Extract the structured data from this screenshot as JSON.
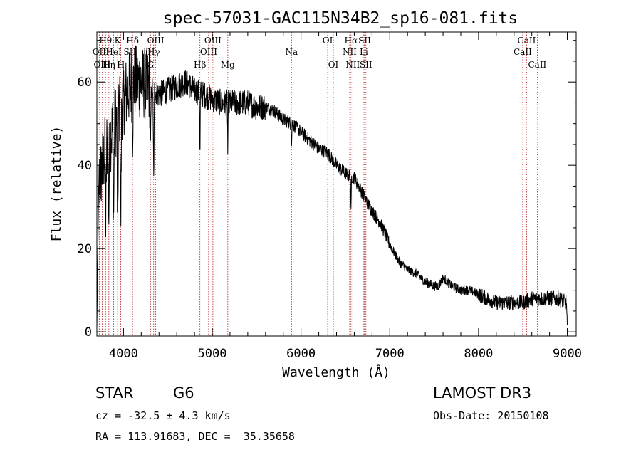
{
  "chart_data": {
    "type": "line",
    "title": "spec-57031-GAC115N34B2_sp16-081.fits",
    "xlabel": "Wavelength (Å)",
    "ylabel": "Flux (relative)",
    "xlim": [
      3700,
      9100
    ],
    "ylim": [
      -1,
      72
    ],
    "x_ticks": [
      4000,
      5000,
      6000,
      7000,
      8000,
      9000
    ],
    "y_ticks": [
      0,
      20,
      40,
      60
    ],
    "colors": {
      "spectrum": "#000000",
      "lines": "#b22222",
      "axes": "#000000"
    },
    "spectral_lines": [
      {
        "label": "Hθ",
        "wavelength": 3798,
        "row": 1
      },
      {
        "label": "OII",
        "wavelength": 3727,
        "row": 2
      },
      {
        "label": "OIII",
        "wavelength": 3760,
        "row": 3
      },
      {
        "label": "K",
        "wavelength": 3934,
        "row": 1
      },
      {
        "label": "HeI",
        "wavelength": 3889,
        "row": 2
      },
      {
        "label": "Hη",
        "wavelength": 3835,
        "row": 3
      },
      {
        "label": "H",
        "wavelength": 3969,
        "row": 3
      },
      {
        "label": "SII",
        "wavelength": 4072,
        "row": 2
      },
      {
        "label": "Hδ",
        "wavelength": 4102,
        "row": 1
      },
      {
        "label": "OIII",
        "wavelength": 4363,
        "row": 1
      },
      {
        "label": "Hγ",
        "wavelength": 4340,
        "row": 2
      },
      {
        "label": "G",
        "wavelength": 4304,
        "row": 3
      },
      {
        "label": "Hβ",
        "wavelength": 4861,
        "row": 3
      },
      {
        "label": "OIII",
        "wavelength": 4959,
        "row": 2
      },
      {
        "label": "OIII",
        "wavelength": 5007,
        "row": 1
      },
      {
        "label": "Mg",
        "wavelength": 5175,
        "row": 3
      },
      {
        "label": "Na",
        "wavelength": 5893,
        "row": 2
      },
      {
        "label": "OI",
        "wavelength": 6300,
        "row": 1
      },
      {
        "label": "OI",
        "wavelength": 6364,
        "row": 3
      },
      {
        "label": "NII",
        "wavelength": 6548,
        "row": 2
      },
      {
        "label": "Hα",
        "wavelength": 6563,
        "row": 1
      },
      {
        "label": "NII",
        "wavelength": 6583,
        "row": 3
      },
      {
        "label": "Li",
        "wavelength": 6708,
        "row": 2
      },
      {
        "label": "SII",
        "wavelength": 6717,
        "row": 1
      },
      {
        "label": "SII",
        "wavelength": 6731,
        "row": 3
      },
      {
        "label": "CaII",
        "wavelength": 8498,
        "row": 2
      },
      {
        "label": "CaII",
        "wavelength": 8542,
        "row": 1
      },
      {
        "label": "CaII",
        "wavelength": 8662,
        "row": 3
      }
    ],
    "spectrum_anchors": {
      "x": [
        3700,
        3720,
        3800,
        3900,
        4000,
        4100,
        4200,
        4300,
        4400,
        4500,
        4600,
        4700,
        4800,
        4900,
        5000,
        5100,
        5200,
        5300,
        5400,
        5500,
        5600,
        5700,
        5800,
        5900,
        6000,
        6100,
        6200,
        6300,
        6400,
        6500,
        6600,
        6700,
        6800,
        6900,
        7000,
        7100,
        7200,
        7300,
        7400,
        7500,
        7550,
        7600,
        7650,
        7700,
        7800,
        7900,
        8000,
        8100,
        8200,
        8300,
        8400,
        8500,
        8600,
        8700,
        8800,
        8900,
        8990,
        9000
      ],
      "y": [
        1,
        35,
        44,
        50,
        56,
        60,
        60,
        59,
        57,
        58,
        59,
        60,
        58,
        57,
        56,
        55,
        55,
        55,
        55,
        54,
        54,
        53,
        51,
        50,
        48,
        46,
        44,
        43,
        40,
        38,
        37,
        33,
        29,
        26,
        21,
        17,
        15,
        14,
        12,
        11,
        11,
        13,
        12,
        11,
        10,
        10,
        9,
        8,
        7,
        7,
        7,
        7,
        8,
        8,
        8,
        8,
        7,
        1
      ]
    },
    "absorption_dips": [
      {
        "x": 3800,
        "depth": 20
      },
      {
        "x": 3835,
        "depth": 18
      },
      {
        "x": 3889,
        "depth": 22
      },
      {
        "x": 3934,
        "depth": 32
      },
      {
        "x": 3969,
        "depth": 28
      },
      {
        "x": 4102,
        "depth": 12
      },
      {
        "x": 4304,
        "depth": 16
      },
      {
        "x": 4340,
        "depth": 22
      },
      {
        "x": 4861,
        "depth": 18
      },
      {
        "x": 5175,
        "depth": 12
      },
      {
        "x": 5893,
        "depth": 6
      },
      {
        "x": 6563,
        "depth": 10
      }
    ]
  },
  "info": {
    "obj_class": "STAR",
    "subclass": "G6",
    "survey": "LAMOST DR3",
    "cz": "cz = -32.5 ± 4.3 km/s",
    "obs_date": "Obs-Date: 20150108",
    "coords": "RA = 113.91683, DEC =  35.35658"
  }
}
